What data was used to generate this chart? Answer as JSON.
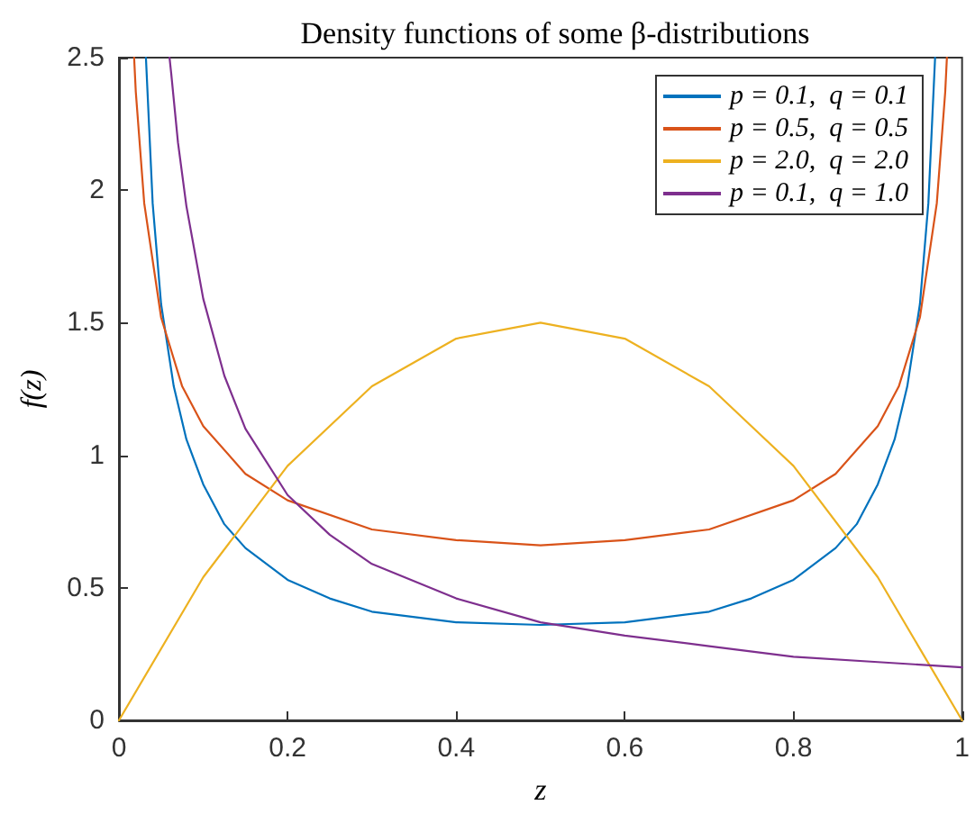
{
  "chart_data": {
    "type": "line",
    "title": "Density functions of some β-distributions",
    "xlabel": "z",
    "ylabel": "f(z)",
    "xlim": [
      0,
      1
    ],
    "ylim": [
      0,
      2.5
    ],
    "xticks": [
      0,
      0.2,
      0.4,
      0.6,
      0.8,
      1
    ],
    "yticks": [
      0,
      0.5,
      1,
      1.5,
      2,
      2.5
    ],
    "grid": false,
    "legend": "top right",
    "marker": "none",
    "line_style": "solid",
    "series": [
      {
        "name": "p = 0.1,  q = 0.1",
        "color": "#0072bd",
        "x": [
          0.032,
          0.04,
          0.05,
          0.065,
          0.08,
          0.1,
          0.125,
          0.15,
          0.2,
          0.25,
          0.3,
          0.4,
          0.5,
          0.6,
          0.7,
          0.75,
          0.8,
          0.85,
          0.875,
          0.9,
          0.92,
          0.935,
          0.95,
          0.96,
          0.968
        ],
        "values": [
          2.5,
          1.95,
          1.57,
          1.26,
          1.06,
          0.89,
          0.74,
          0.65,
          0.53,
          0.46,
          0.41,
          0.37,
          0.36,
          0.37,
          0.41,
          0.46,
          0.53,
          0.65,
          0.74,
          0.89,
          1.06,
          1.26,
          1.57,
          1.95,
          2.5
        ]
      },
      {
        "name": "p = 0.5,  q = 0.5",
        "color": "#d95319",
        "x": [
          0.018,
          0.02,
          0.03,
          0.05,
          0.075,
          0.1,
          0.15,
          0.2,
          0.3,
          0.4,
          0.5,
          0.6,
          0.7,
          0.8,
          0.85,
          0.9,
          0.925,
          0.95,
          0.97,
          0.98,
          0.982
        ],
        "values": [
          2.5,
          2.37,
          1.95,
          1.52,
          1.26,
          1.11,
          0.93,
          0.83,
          0.72,
          0.68,
          0.66,
          0.68,
          0.72,
          0.83,
          0.93,
          1.11,
          1.26,
          1.52,
          1.95,
          2.37,
          2.5
        ]
      },
      {
        "name": "p = 2.0,  q = 2.0",
        "color": "#edb120",
        "x": [
          0,
          0.1,
          0.2,
          0.3,
          0.4,
          0.5,
          0.6,
          0.7,
          0.8,
          0.9,
          1
        ],
        "values": [
          0,
          0.54,
          0.96,
          1.26,
          1.44,
          1.5,
          1.44,
          1.26,
          0.96,
          0.54,
          0
        ]
      },
      {
        "name": "p = 0.1,  q = 1.0",
        "color": "#7e2f8e",
        "x": [
          0.06,
          0.062,
          0.07,
          0.08,
          0.1,
          0.125,
          0.15,
          0.2,
          0.25,
          0.3,
          0.4,
          0.5,
          0.6,
          0.7,
          0.8,
          0.9,
          1
        ],
        "values": [
          2.5,
          2.44,
          2.18,
          1.94,
          1.59,
          1.3,
          1.1,
          0.85,
          0.7,
          0.59,
          0.46,
          0.37,
          0.32,
          0.28,
          0.24,
          0.22,
          0.2
        ]
      }
    ]
  }
}
